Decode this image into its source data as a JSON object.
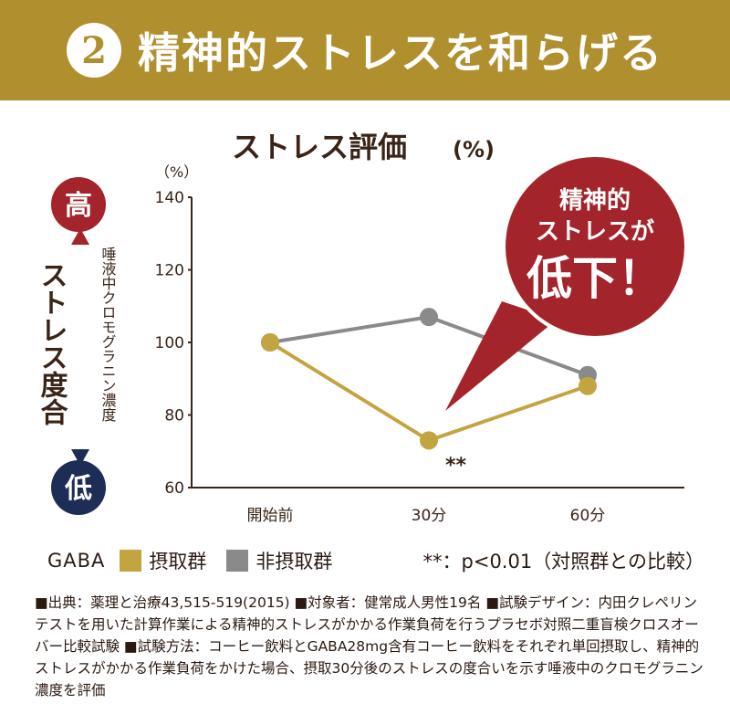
{
  "banner": {
    "number": "2",
    "title": "精神的ストレスを和らげる"
  },
  "chart_data": {
    "type": "line",
    "title": "ストレス評価",
    "title_unit": "(%)",
    "y_unit": "（%）",
    "categories": [
      "開始前",
      "30分",
      "60分"
    ],
    "ylim": [
      60,
      140
    ],
    "yticks": [
      60,
      80,
      100,
      120,
      140
    ],
    "series": [
      {
        "name": "摂取群",
        "color": "#c2a540",
        "values": [
          100,
          73,
          88
        ]
      },
      {
        "name": "非摂取群",
        "color": "#8a8a8a",
        "values": [
          100,
          107,
          91
        ]
      }
    ],
    "annotation": "**",
    "annotation_category": "30分"
  },
  "side": {
    "high": "高",
    "low": "低",
    "label": "ストレス度合",
    "sublabel": "唾液中クロモグラニン濃度",
    "high_color": "#a3242a",
    "low_color": "#1e2d55"
  },
  "callout": {
    "line1": "精神的",
    "line2": "ストレスが",
    "line3": "低下！",
    "color": "#a3242a"
  },
  "legend": {
    "prefix": "GABA",
    "intake": "摂取群",
    "non_intake": "非摂取群",
    "note": "**：p<0.01（対照群との比較）"
  },
  "footer": {
    "text": "■出典：薬理と治療43,515-519(2015) ■対象者：健常成人男性19名 ■試験デザイン：内田クレペリンテストを用いた計算作業による精神的ストレスがかかる作業負荷を行うプラセボ対照二重盲検クロスオーバー比較試験 ■試験方法：コーヒー飲料とGABA28mg含有コーヒー飲料をそれぞれ単回摂取し、精神的ストレスがかかる作業負荷をかけた場合、摂取30分後のストレスの度合いを示す唾液中のクロモグラニン濃度を評価"
  }
}
